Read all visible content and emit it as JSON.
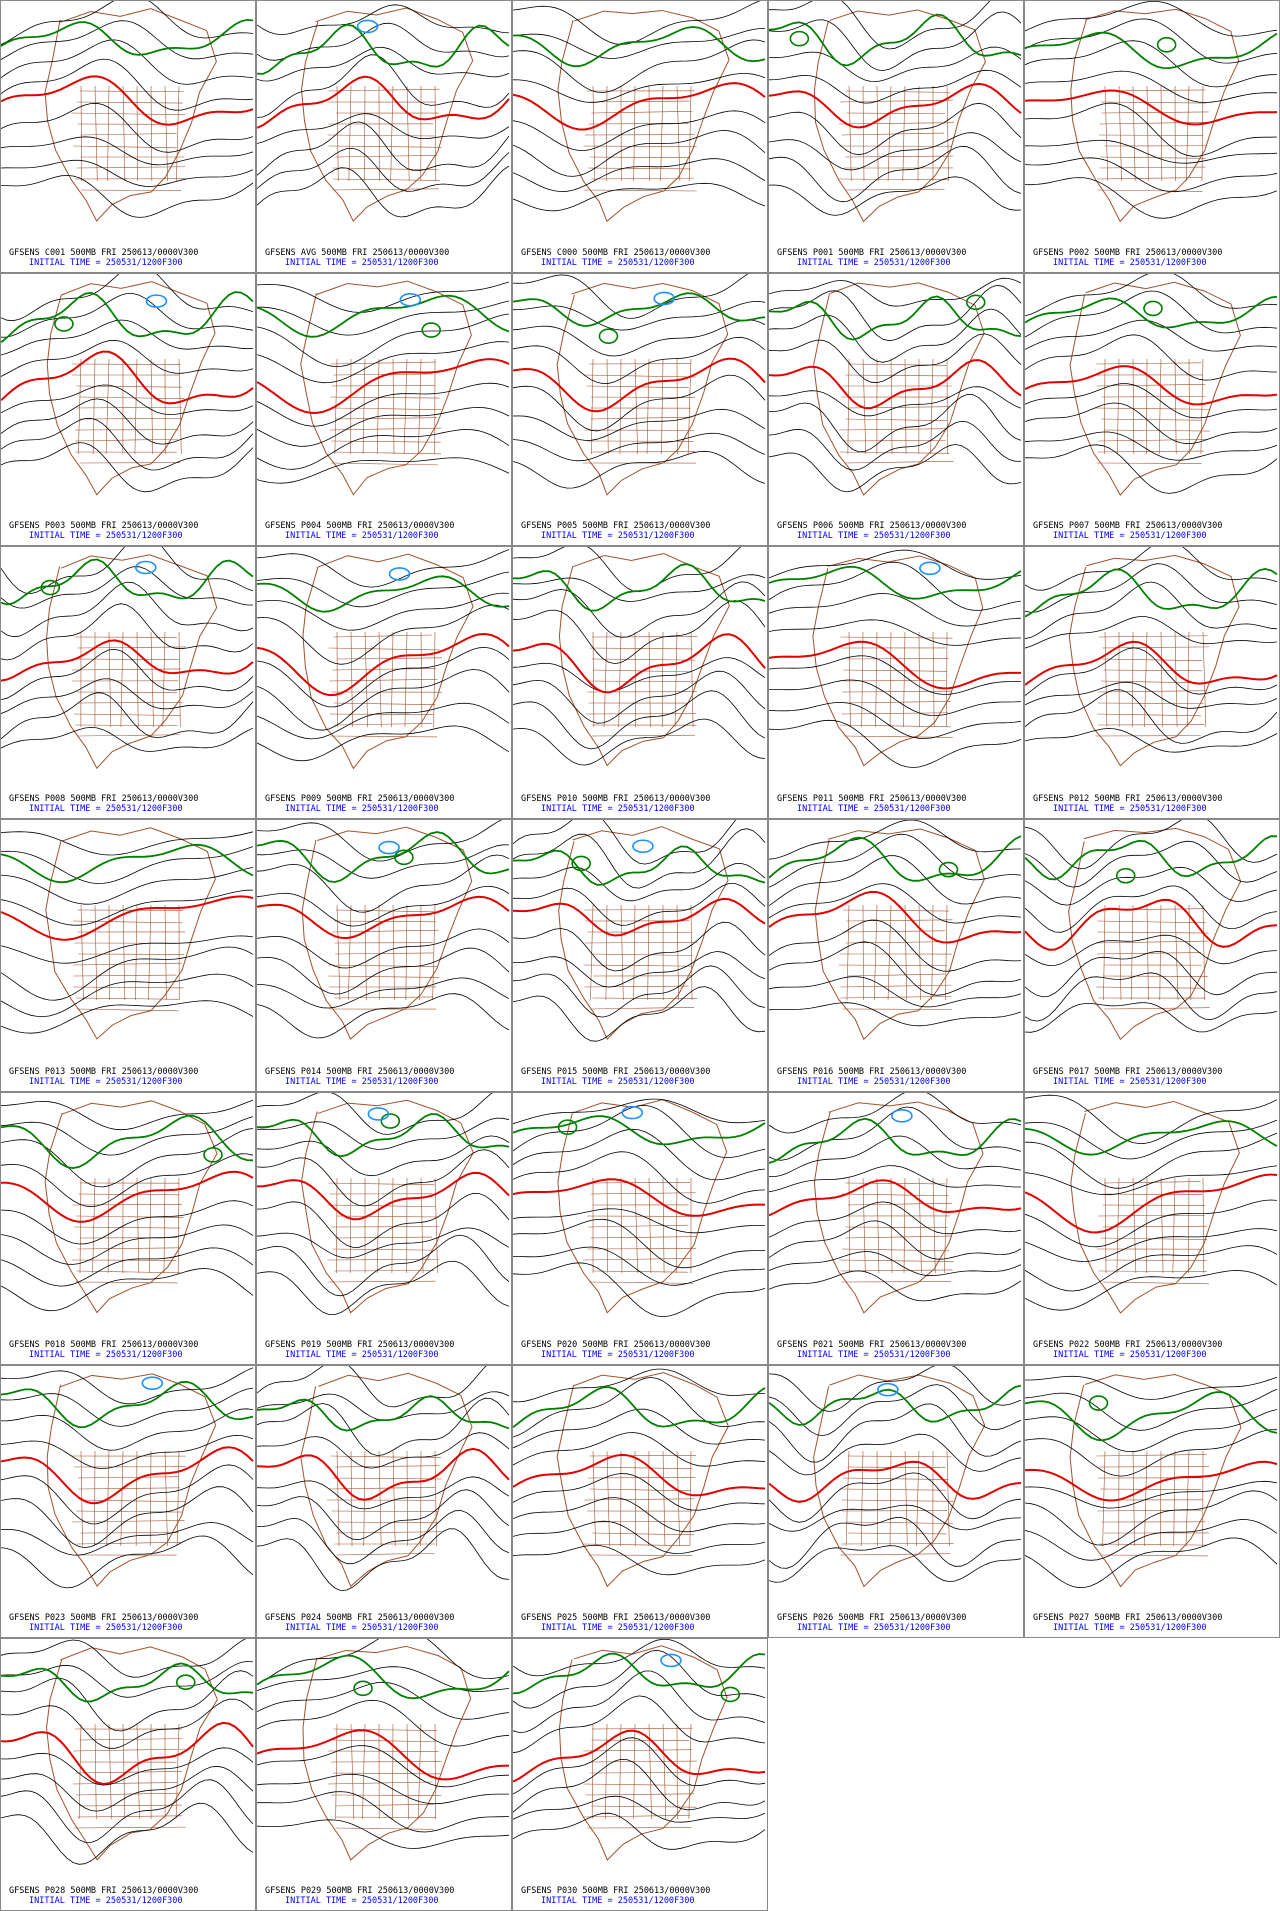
{
  "panels": [
    {
      "caption": "GFSENS C001 500MB FRI 250613/0000V300",
      "initial_time": "INITIAL TIME = 250531/1200F300"
    },
    {
      "caption": "GFSENS AVG 500MB FRI 250613/0000V300",
      "initial_time": "INITIAL TIME = 250531/1200F300"
    },
    {
      "caption": "GFSENS C000 500MB FRI 250613/0000V300",
      "initial_time": "INITIAL TIME = 250531/1200F300"
    },
    {
      "caption": "GFSENS P001 500MB FRI 250613/0000V300",
      "initial_time": "INITIAL TIME = 250531/1200F300"
    },
    {
      "caption": "GFSENS P002 500MB FRI 250613/0000V300",
      "initial_time": "INITIAL TIME = 250531/1200F300"
    },
    {
      "caption": "GFSENS P003 500MB FRI 250613/0000V300",
      "initial_time": "INITIAL TIME = 250531/1200F300"
    },
    {
      "caption": "GFSENS P004 500MB FRI 250613/0000V300",
      "initial_time": "INITIAL TIME = 250531/1200F300"
    },
    {
      "caption": "GFSENS P005 500MB FRI 250613/0000V300",
      "initial_time": "INITIAL TIME = 250531/1200F300"
    },
    {
      "caption": "GFSENS P006 500MB FRI 250613/0000V300",
      "initial_time": "INITIAL TIME = 250531/1200F300"
    },
    {
      "caption": "GFSENS P007 500MB FRI 250613/0000V300",
      "initial_time": "INITIAL TIME = 250531/1200F300"
    },
    {
      "caption": "GFSENS P008 500MB FRI 250613/0000V300",
      "initial_time": "INITIAL TIME = 250531/1200F300"
    },
    {
      "caption": "GFSENS P009 500MB FRI 250613/0000V300",
      "initial_time": "INITIAL TIME = 250531/1200F300"
    },
    {
      "caption": "GFSENS P010 500MB FRI 250613/0000V300",
      "initial_time": "INITIAL TIME = 250531/1200F300"
    },
    {
      "caption": "GFSENS P011 500MB FRI 250613/0000V300",
      "initial_time": "INITIAL TIME = 250531/1200F300"
    },
    {
      "caption": "GFSENS P012 500MB FRI 250613/0000V300",
      "initial_time": "INITIAL TIME = 250531/1200F300"
    },
    {
      "caption": "GFSENS P013 500MB FRI 250613/0000V300",
      "initial_time": "INITIAL TIME = 250531/1200F300"
    },
    {
      "caption": "GFSENS P014 500MB FRI 250613/0000V300",
      "initial_time": "INITIAL TIME = 250531/1200F300"
    },
    {
      "caption": "GFSENS P015 500MB FRI 250613/0000V300",
      "initial_time": "INITIAL TIME = 250531/1200F300"
    },
    {
      "caption": "GFSENS P016 500MB FRI 250613/0000V300",
      "initial_time": "INITIAL TIME = 250531/1200F300"
    },
    {
      "caption": "GFSENS P017 500MB FRI 250613/0000V300",
      "initial_time": "INITIAL TIME = 250531/1200F300"
    },
    {
      "caption": "GFSENS P018 500MB FRI 250613/0000V300",
      "initial_time": "INITIAL TIME = 250531/1200F300"
    },
    {
      "caption": "GFSENS P019 500MB FRI 250613/0000V300",
      "initial_time": "INITIAL TIME = 250531/1200F300"
    },
    {
      "caption": "GFSENS P020 500MB FRI 250613/0000V300",
      "initial_time": "INITIAL TIME = 250531/1200F300"
    },
    {
      "caption": "GFSENS P021 500MB FRI 250613/0000V300",
      "initial_time": "INITIAL TIME = 250531/1200F300"
    },
    {
      "caption": "GFSENS P022 500MB FRI 250613/0000V300",
      "initial_time": "INITIAL TIME = 250531/1200F300"
    },
    {
      "caption": "GFSENS P023 500MB FRI 250613/0000V300",
      "initial_time": "INITIAL TIME = 250531/1200F300"
    },
    {
      "caption": "GFSENS P024 500MB FRI 250613/0000V300",
      "initial_time": "INITIAL TIME = 250531/1200F300"
    },
    {
      "caption": "GFSENS P025 500MB FRI 250613/0000V300",
      "initial_time": "INITIAL TIME = 250531/1200F300"
    },
    {
      "caption": "GFSENS P026 500MB FRI 250613/0000V300",
      "initial_time": "INITIAL TIME = 250531/1200F300"
    },
    {
      "caption": "GFSENS P027 500MB FRI 250613/0000V300",
      "initial_time": "INITIAL TIME = 250531/1200F300"
    },
    {
      "caption": "GFSENS P028 500MB FRI 250613/0000V300",
      "initial_time": "INITIAL TIME = 250531/1200F300"
    },
    {
      "caption": "GFSENS P029 500MB FRI 250613/0000V300",
      "initial_time": "INITIAL TIME = 250531/1200F300"
    },
    {
      "caption": "GFSENS P030 500MB FRI 250613/0000V300",
      "initial_time": "INITIAL TIME = 250531/1200F300"
    }
  ]
}
